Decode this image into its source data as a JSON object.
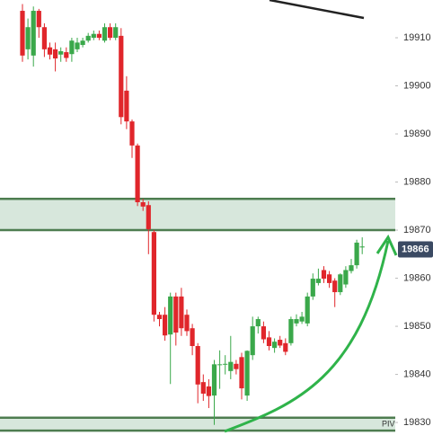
{
  "chart_data": {
    "type": "candlestick",
    "open": [
      19915.6,
      19907.6,
      19906.3,
      19915.6,
      19912.2,
      19908,
      19907.6,
      19906.5,
      19907,
      19906.6,
      19907.6,
      19908.5,
      19909.4,
      19910,
      19910.8,
      19909.4,
      19912.2,
      19910,
      19910.4,
      19899,
      19892.6,
      19887.6,
      19875.8,
      19875.2,
      19869.6,
      19852.4,
      19852.4,
      19848.3,
      19856.2,
      19856.2,
      19852.4,
      19849.6,
      19845.9,
      19838.4,
      19837.5,
      19835.6,
      19842,
      19842.1,
      19840.7,
      19842.2,
      19843.6,
      19835.6,
      19844,
      19850,
      19850,
      19847.7,
      19845.5,
      19847.2,
      19846.5,
      19846.5,
      19850.6,
      19851,
      19850.6,
      19856.2,
      19859,
      19861.7,
      19860.8,
      19859.5,
      19857.1,
      19858.7,
      19861.5,
      19862.7,
      19866.4
    ],
    "high": [
      19917,
      19914,
      19916.5,
      19916,
      19913,
      19909,
      19909,
      19908,
      19908,
      19910,
      19910,
      19910,
      19911,
      19911.5,
      19911.5,
      19913,
      19913,
      19913,
      19912,
      19902,
      19893,
      19888,
      19876.5,
      19876,
      19870,
      19853,
      19854,
      19857,
      19857,
      19858,
      19853.5,
      19850.5,
      19846.5,
      19840,
      19839,
      19843,
      19845,
      19844,
      19848,
      19843,
      19844.5,
      19845,
      19852,
      19852,
      19851,
      19849,
      19847.5,
      19848,
      19847.5,
      19852,
      19852.5,
      19853,
      19857,
      19861,
      19862,
      19862.5,
      19861.5,
      19860,
      19861,
      19862.5,
      19864,
      19868,
      19868.5
    ],
    "low": [
      19905,
      19905.5,
      19904,
      19910,
      19906,
      19905.5,
      19903,
      19905,
      19905,
      19905,
      19907,
      19908,
      19909,
      19909.5,
      19909.5,
      19909,
      19909.5,
      19909.5,
      19892,
      19891,
      19885,
      19875,
      19874,
      19865,
      19851,
      19850,
      19847,
      19838,
      19846,
      19848,
      19848,
      19844,
      19834,
      19834.5,
      19833,
      19829.5,
      19837,
      19840,
      19839,
      19840,
      19834.8,
      19834.5,
      19843,
      19848.5,
      19846.5,
      19845,
      19844.5,
      19845.5,
      19844,
      19846,
      19850,
      19850.5,
      19850,
      19855.5,
      19858.5,
      19859,
      19858,
      19854,
      19856.5,
      19858,
      19861,
      19862,
      19865
    ],
    "close": [
      19906.3,
      19912.2,
      19915.6,
      19912.2,
      19907.6,
      19906.5,
      19905.7,
      19907.2,
      19905.8,
      19909.4,
      19909,
      19909.4,
      19910.4,
      19910.8,
      19910,
      19912.2,
      19910,
      19912.2,
      19893.5,
      19892.6,
      19887.6,
      19875.8,
      19874.9,
      19870.2,
      19852.4,
      19851.5,
      19848.1,
      19856.2,
      19848.7,
      19849.6,
      19849,
      19845.9,
      19837.9,
      19836,
      19835.5,
      19842.1,
      19842.1,
      19842.2,
      19842.6,
      19841.1,
      19837.1,
      19844.9,
      19850,
      19851.5,
      19847.3,
      19845.9,
      19846.8,
      19846,
      19844.7,
      19851.5,
      19851.5,
      19852,
      19856.2,
      19859.9,
      19859.9,
      19859.9,
      19859,
      19857.1,
      19860.8,
      19861.7,
      19862.7,
      19867.4,
      19866.6
    ],
    "up_color": "#3aa84a",
    "down_color": "#e0262b",
    "ylim": [
      19827.4,
      19917.85
    ],
    "yticks": [
      19830,
      19840,
      19850,
      19860,
      19870,
      19880,
      19890,
      19900,
      19910
    ],
    "current_price": 19866,
    "zones": [
      {
        "from": 19870,
        "to": 19876.5
      },
      {
        "from": 19828.3,
        "to": 19831
      }
    ],
    "pivot_label": "PIV"
  }
}
